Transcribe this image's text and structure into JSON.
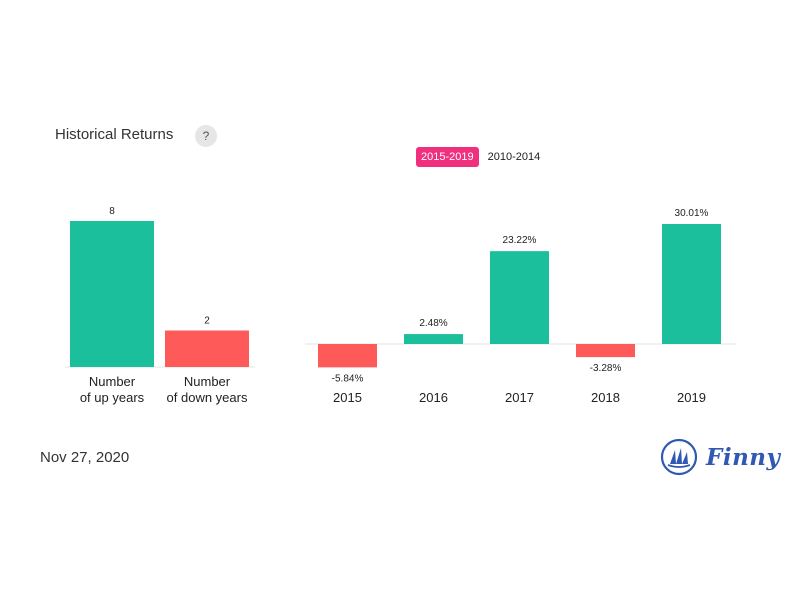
{
  "header": {
    "title": "Historical Returns",
    "help_label": "?"
  },
  "tabs": [
    {
      "label": "2015-2019",
      "active": true
    },
    {
      "label": "2010-2014",
      "active": false
    }
  ],
  "footer": {
    "date": "Nov 27, 2020",
    "brand": "Finny"
  },
  "colors": {
    "up": "#1bbf9b",
    "down": "#ff5a5a",
    "tab_active": "#f0307e",
    "brand": "#2f59b3"
  },
  "chart_data": [
    {
      "type": "bar",
      "categories": [
        [
          "Number",
          "of up years"
        ],
        [
          "Number",
          "of down years"
        ]
      ],
      "values": [
        8,
        2
      ],
      "data_labels": [
        "8",
        "2"
      ],
      "ylim": [
        0,
        8
      ]
    },
    {
      "type": "bar",
      "categories": [
        "2015",
        "2016",
        "2017",
        "2018",
        "2019"
      ],
      "values": [
        -5.84,
        2.48,
        23.22,
        -3.28,
        30.01
      ],
      "data_labels": [
        "-5.84%",
        "2.48%",
        "23.22%",
        "-3.28%",
        "30.01%"
      ],
      "ylim": [
        -5.84,
        30.01
      ]
    }
  ]
}
